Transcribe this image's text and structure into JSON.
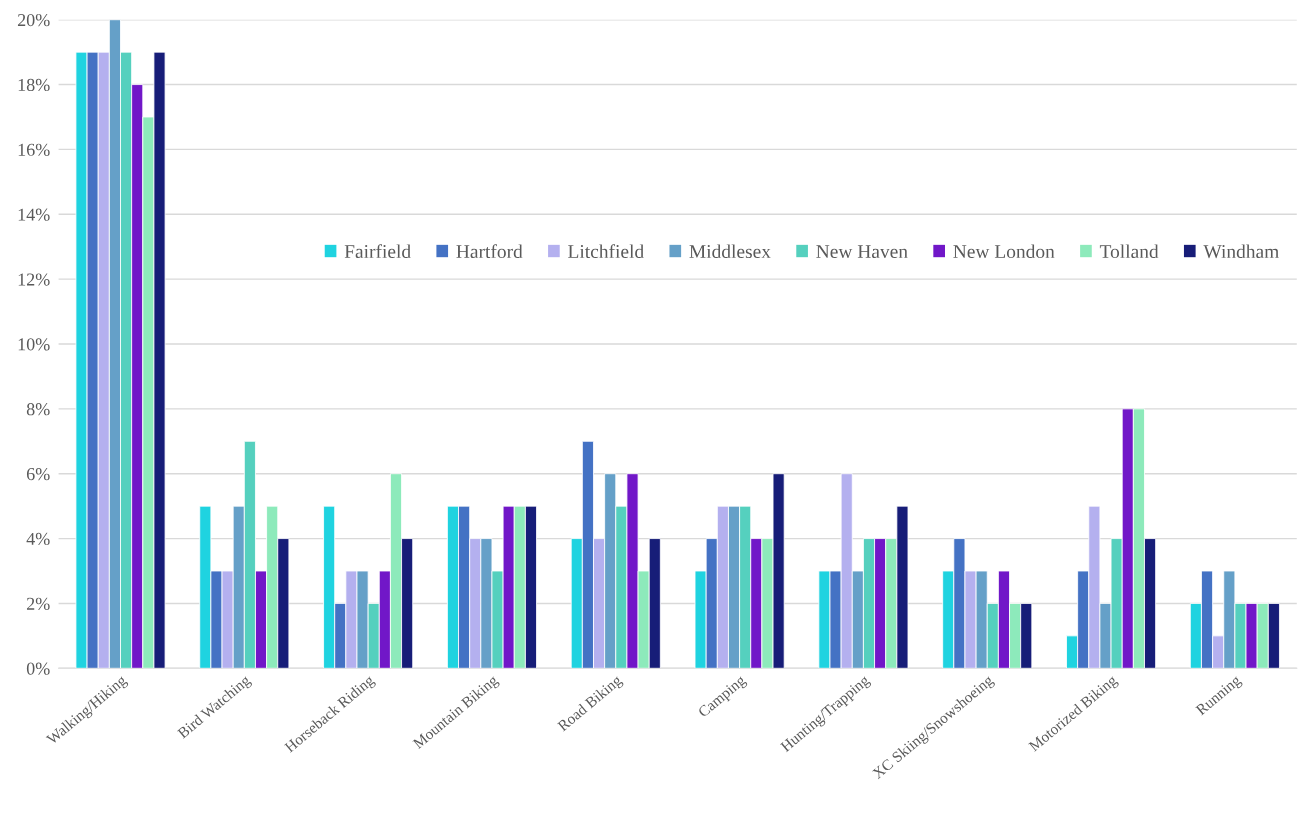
{
  "chart_data": {
    "type": "bar",
    "categories": [
      "Walking/Hiking",
      "Bird Watching",
      "Horseback Riding",
      "Mountain Biking",
      "Road Biking",
      "Camping",
      "Hunting/Trapping",
      "XC Skiing/Snowshoeing",
      "Motorized Biking",
      "Running"
    ],
    "series": [
      {
        "name": "Fairfield",
        "color": "#1fd3e0",
        "values": [
          19,
          5,
          5,
          5,
          4,
          3,
          3,
          3,
          1,
          2
        ]
      },
      {
        "name": "Hartford",
        "color": "#4472c4",
        "values": [
          19,
          3,
          2,
          5,
          7,
          4,
          3,
          4,
          3,
          3
        ]
      },
      {
        "name": "Litchfield",
        "color": "#b4b0ef",
        "values": [
          19,
          3,
          3,
          4,
          4,
          5,
          6,
          3,
          5,
          1
        ]
      },
      {
        "name": "Middlesex",
        "color": "#65a0c8",
        "values": [
          20,
          5,
          3,
          4,
          6,
          5,
          3,
          3,
          2,
          3
        ]
      },
      {
        "name": "New Haven",
        "color": "#55d0be",
        "values": [
          19,
          7,
          2,
          3,
          5,
          5,
          4,
          2,
          4,
          2
        ]
      },
      {
        "name": "New London",
        "color": "#7117c8",
        "values": [
          18,
          3,
          3,
          5,
          6,
          4,
          4,
          3,
          8,
          2
        ]
      },
      {
        "name": "Tolland",
        "color": "#8deabb",
        "values": [
          17,
          5,
          6,
          5,
          3,
          4,
          4,
          2,
          8,
          2
        ]
      },
      {
        "name": "Windham",
        "color": "#171d78",
        "values": [
          19,
          4,
          4,
          5,
          4,
          6,
          5,
          2,
          4,
          2
        ]
      }
    ],
    "ylim": [
      0,
      20
    ],
    "yticks": [
      {
        "value": 0,
        "label": "0%"
      },
      {
        "value": 2,
        "label": "2%"
      },
      {
        "value": 4,
        "label": "4%"
      },
      {
        "value": 6,
        "label": "6%"
      },
      {
        "value": 8,
        "label": "8%"
      },
      {
        "value": 10,
        "label": "10%"
      },
      {
        "value": 12,
        "label": "12%"
      },
      {
        "value": 14,
        "label": "14%"
      },
      {
        "value": 16,
        "label": "16%"
      },
      {
        "value": 18,
        "label": "18%"
      },
      {
        "value": 20,
        "label": "20%"
      }
    ],
    "grid": "y",
    "legend": "right"
  }
}
